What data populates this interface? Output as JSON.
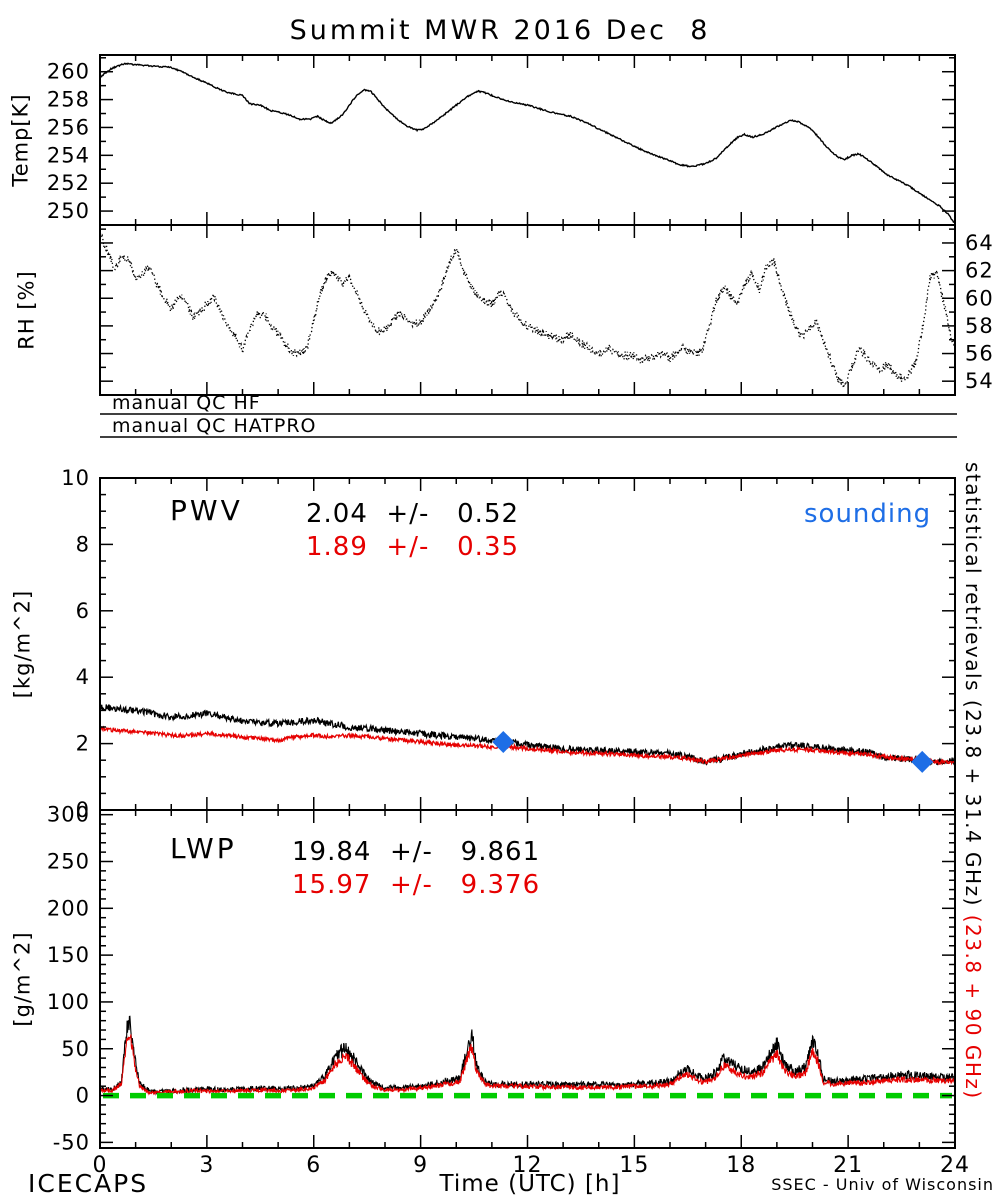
{
  "title": "Summit MWR 2016 Dec  8",
  "footer": {
    "left": "ICECAPS",
    "right": "SSEC - Univ of Wisconsin"
  },
  "qc": {
    "rows": [
      {
        "label": "manual QC HF"
      },
      {
        "label": "manual QC HATPRO"
      }
    ]
  },
  "right_caption": {
    "black": "statistical retrievals (23.8 + 31.4 GHz) ",
    "red": "(23.8 + 90 GHz)"
  },
  "colors": {
    "trace_black": "#000000",
    "trace_red": "#e60000",
    "sounding_blue": "#1e6ee6",
    "zero_green": "#00cc00"
  },
  "xaxis": {
    "label": "Time (UTC) [h]",
    "min": 0,
    "max": 24,
    "ticks": [
      0,
      3,
      6,
      9,
      12,
      15,
      18,
      21,
      24
    ],
    "minor_step": 1
  },
  "chart_data": [
    {
      "name": "temp",
      "type": "line",
      "ylabel": "Temp[K]",
      "ylim": [
        249.0,
        261.2
      ],
      "yticks": [
        250,
        252,
        254,
        256,
        258,
        260
      ],
      "yminor": 1,
      "ytick_side": "left",
      "series": [
        {
          "name": "temperature-K",
          "color": "#000000",
          "width": 1.4,
          "noise": 0.05,
          "samples": 1100,
          "x": [
            0,
            0.3,
            0.7,
            1.0,
            1.5,
            2.0,
            2.3,
            2.7,
            3.0,
            3.3,
            3.6,
            4.0,
            4.2,
            4.5,
            4.8,
            5.0,
            5.3,
            5.6,
            5.9,
            6.1,
            6.3,
            6.5,
            6.8,
            7.0,
            7.2,
            7.4,
            7.6,
            7.8,
            8.0,
            8.3,
            8.6,
            8.9,
            9.1,
            9.4,
            9.7,
            10.0,
            10.3,
            10.6,
            10.8,
            11.0,
            11.3,
            11.6,
            12.0,
            12.4,
            12.8,
            13.2,
            13.6,
            14.0,
            14.4,
            14.8,
            15.2,
            15.6,
            16.0,
            16.3,
            16.6,
            17.0,
            17.3,
            17.6,
            17.9,
            18.1,
            18.3,
            18.6,
            18.9,
            19.2,
            19.4,
            19.6,
            19.9,
            20.1,
            20.4,
            20.7,
            20.9,
            21.1,
            21.3,
            21.5,
            21.8,
            22.1,
            22.4,
            22.7,
            23.0,
            23.3,
            23.6,
            23.8,
            24.0
          ],
          "y": [
            259.6,
            260.2,
            260.6,
            260.5,
            260.4,
            260.3,
            260.0,
            259.5,
            259.2,
            258.8,
            258.5,
            258.3,
            257.7,
            257.6,
            257.2,
            257.1,
            256.9,
            256.6,
            256.6,
            256.8,
            256.5,
            256.3,
            256.9,
            257.6,
            258.3,
            258.7,
            258.6,
            258.0,
            257.4,
            256.7,
            256.1,
            255.8,
            255.9,
            256.4,
            257.0,
            257.6,
            258.2,
            258.6,
            258.5,
            258.3,
            258.0,
            257.8,
            257.6,
            257.3,
            257.0,
            256.8,
            256.4,
            255.9,
            255.4,
            254.9,
            254.4,
            254.0,
            253.6,
            253.3,
            253.2,
            253.4,
            253.8,
            254.6,
            255.3,
            255.5,
            255.3,
            255.5,
            255.9,
            256.3,
            256.5,
            256.4,
            256.0,
            255.5,
            254.6,
            253.9,
            253.7,
            254.0,
            254.1,
            253.8,
            253.2,
            252.6,
            252.2,
            251.8,
            251.3,
            250.8,
            250.3,
            249.8,
            249.1
          ]
        }
      ]
    },
    {
      "name": "rh",
      "type": "scatter",
      "ylabel": "RH [%]",
      "ylim": [
        53.0,
        65.3
      ],
      "yticks": [
        54,
        56,
        58,
        60,
        62,
        64
      ],
      "yminor": 1,
      "ytick_side": "right",
      "series": [
        {
          "name": "relative-humidity-pct",
          "color": "#000000",
          "width": 1.3,
          "style": "dots",
          "noise": 0.3,
          "samples": 1600,
          "x": [
            0,
            0.2,
            0.4,
            0.6,
            0.8,
            1.0,
            1.2,
            1.4,
            1.6,
            1.8,
            2.0,
            2.2,
            2.4,
            2.6,
            2.8,
            3.0,
            3.2,
            3.4,
            3.6,
            3.8,
            4.0,
            4.2,
            4.4,
            4.6,
            4.8,
            5.0,
            5.2,
            5.4,
            5.6,
            5.8,
            6.0,
            6.2,
            6.4,
            6.6,
            6.8,
            7.0,
            7.2,
            7.4,
            7.6,
            7.8,
            8.0,
            8.2,
            8.4,
            8.6,
            8.8,
            9.0,
            9.2,
            9.4,
            9.6,
            9.8,
            10.0,
            10.2,
            10.4,
            10.6,
            10.8,
            11.0,
            11.2,
            11.4,
            11.6,
            11.8,
            12.0,
            12.3,
            12.6,
            12.9,
            13.2,
            13.5,
            13.8,
            14.0,
            14.3,
            14.6,
            14.9,
            15.2,
            15.5,
            15.8,
            16.0,
            16.3,
            16.6,
            16.9,
            17.1,
            17.3,
            17.5,
            17.7,
            17.9,
            18.1,
            18.3,
            18.5,
            18.7,
            18.9,
            19.1,
            19.3,
            19.5,
            19.7,
            19.9,
            20.1,
            20.3,
            20.5,
            20.7,
            20.9,
            21.1,
            21.3,
            21.5,
            21.7,
            21.9,
            22.1,
            22.3,
            22.5,
            22.7,
            22.9,
            23.1,
            23.3,
            23.5,
            23.7,
            23.9,
            24.0
          ],
          "y": [
            64.6,
            63.5,
            62.2,
            63.0,
            62.8,
            61.4,
            61.8,
            62.3,
            61.0,
            60.0,
            59.2,
            60.1,
            59.9,
            58.6,
            59.0,
            59.6,
            60.1,
            59.0,
            58.0,
            57.3,
            56.2,
            57.8,
            58.8,
            58.9,
            58.0,
            57.4,
            56.6,
            56.1,
            56.0,
            56.3,
            58.5,
            60.5,
            61.7,
            61.9,
            61.0,
            61.5,
            60.4,
            59.2,
            58.2,
            57.6,
            57.7,
            58.4,
            58.9,
            58.6,
            58.1,
            58.3,
            59.0,
            59.8,
            61.0,
            62.5,
            63.6,
            62.0,
            60.8,
            60.2,
            59.8,
            59.6,
            60.4,
            60.0,
            59.0,
            58.4,
            58.0,
            57.6,
            57.3,
            57.0,
            57.4,
            56.8,
            56.2,
            56.0,
            56.4,
            55.8,
            55.9,
            55.5,
            55.8,
            56.1,
            55.6,
            56.4,
            56.0,
            56.2,
            58.0,
            59.8,
            60.8,
            60.2,
            59.6,
            61.0,
            61.8,
            60.6,
            62.2,
            62.8,
            61.0,
            59.4,
            58.0,
            57.2,
            57.8,
            58.3,
            57.0,
            55.6,
            54.2,
            53.6,
            55.0,
            56.4,
            55.8,
            55.2,
            54.8,
            55.2,
            54.6,
            54.2,
            54.5,
            55.4,
            58.0,
            61.5,
            61.8,
            59.5,
            57.0,
            56.4
          ]
        }
      ]
    },
    {
      "name": "pwv",
      "type": "line",
      "panel_label": "PWV",
      "ylabel": "[kg/m^2]",
      "ylim": [
        0,
        10
      ],
      "yticks": [
        0,
        2,
        4,
        6,
        8,
        10
      ],
      "yminor": 0.5,
      "ytick_side": "left",
      "stats": {
        "black": "2.04  +/-   0.52",
        "red": "1.89  +/-   0.35"
      },
      "sounding_label": "sounding",
      "sounding_color": "#1e6ee6",
      "sounding_points": [
        [
          11.32,
          2.05
        ],
        [
          23.08,
          1.45
        ]
      ],
      "series": [
        {
          "name": "pwv-23.8-31.4GHz",
          "color": "#000000",
          "width": 1.3,
          "noise": 0.1,
          "samples": 1500,
          "x": [
            0,
            0.5,
            1,
            1.5,
            2,
            2.5,
            3,
            3.5,
            4,
            4.5,
            5,
            5.5,
            6,
            6.5,
            7,
            7.5,
            8,
            8.5,
            9,
            9.5,
            10,
            10.5,
            11,
            11.5,
            12,
            12.5,
            13,
            13.5,
            14,
            14.5,
            15,
            15.5,
            16,
            16.5,
            17,
            17.5,
            18,
            18.5,
            19,
            19.5,
            20,
            20.5,
            21,
            21.5,
            22,
            22.5,
            23,
            23.5,
            24
          ],
          "y": [
            3.1,
            3.05,
            3.0,
            2.9,
            2.8,
            2.85,
            2.9,
            2.8,
            2.7,
            2.62,
            2.6,
            2.65,
            2.7,
            2.6,
            2.5,
            2.45,
            2.4,
            2.35,
            2.3,
            2.25,
            2.2,
            2.15,
            2.1,
            2.05,
            1.95,
            1.9,
            1.85,
            1.82,
            1.8,
            1.78,
            1.75,
            1.72,
            1.7,
            1.6,
            1.45,
            1.55,
            1.7,
            1.8,
            1.9,
            1.95,
            1.9,
            1.85,
            1.8,
            1.75,
            1.6,
            1.55,
            1.5,
            1.45,
            1.5
          ]
        },
        {
          "name": "pwv-23.8-90GHz",
          "color": "#e60000",
          "width": 1.3,
          "noise": 0.06,
          "samples": 1500,
          "x": [
            0,
            0.5,
            1,
            1.5,
            2,
            2.5,
            3,
            3.5,
            4,
            4.5,
            5,
            5.5,
            6,
            6.5,
            7,
            7.5,
            8,
            8.5,
            9,
            9.5,
            10,
            10.5,
            11,
            11.5,
            12,
            12.5,
            13,
            13.5,
            14,
            14.5,
            15,
            15.5,
            16,
            16.5,
            17,
            17.5,
            18,
            18.5,
            19,
            19.5,
            20,
            20.5,
            21,
            21.5,
            22,
            22.5,
            23,
            23.5,
            24
          ],
          "y": [
            2.45,
            2.4,
            2.35,
            2.3,
            2.25,
            2.25,
            2.3,
            2.25,
            2.2,
            2.15,
            2.1,
            2.2,
            2.25,
            2.2,
            2.25,
            2.2,
            2.15,
            2.1,
            2.05,
            2.0,
            1.95,
            1.95,
            1.9,
            1.9,
            1.85,
            1.8,
            1.75,
            1.72,
            1.7,
            1.68,
            1.65,
            1.62,
            1.6,
            1.55,
            1.45,
            1.55,
            1.65,
            1.72,
            1.8,
            1.82,
            1.8,
            1.75,
            1.72,
            1.68,
            1.6,
            1.55,
            1.5,
            1.45,
            1.45
          ]
        }
      ]
    },
    {
      "name": "lwp",
      "type": "line",
      "panel_label": "LWP",
      "ylabel": "[g/m^2]",
      "ylim": [
        -56,
        305
      ],
      "yticks": [
        -50,
        0,
        50,
        100,
        150,
        200,
        250,
        300
      ],
      "yminor": 10,
      "ytick_side": "left",
      "stats": {
        "black": "19.84  +/-   9.861",
        "red": "15.97  +/-   9.376"
      },
      "zero_line": {
        "y": 0,
        "color": "#00cc00",
        "style": "dashed"
      },
      "series": [
        {
          "name": "lwp-23.8-31.4GHz",
          "color": "#000000",
          "width": 1.1,
          "noise": 2,
          "noise_scale": 0.12,
          "samples": 1800,
          "x": [
            0,
            0.3,
            0.6,
            0.75,
            0.85,
            0.95,
            1.1,
            1.3,
            1.6,
            2,
            2.5,
            3,
            3.5,
            4,
            4.5,
            5,
            5.5,
            6,
            6.3,
            6.5,
            6.7,
            6.9,
            7.1,
            7.3,
            7.5,
            7.7,
            8,
            8.5,
            9,
            9.5,
            9.8,
            10.1,
            10.35,
            10.45,
            10.55,
            10.8,
            11,
            11.5,
            12,
            12.5,
            13,
            13.5,
            14,
            14.5,
            15,
            15.5,
            16,
            16.3,
            16.5,
            16.8,
            17,
            17.3,
            17.5,
            17.7,
            18,
            18.3,
            18.6,
            18.8,
            19,
            19.2,
            19.5,
            19.8,
            20,
            20.15,
            20.3,
            20.6,
            21,
            21.5,
            22,
            22.5,
            23,
            23.5,
            24
          ],
          "y": [
            8,
            6,
            15,
            70,
            75,
            45,
            15,
            6,
            4,
            5,
            6,
            7,
            6,
            7,
            8,
            7,
            8,
            10,
            20,
            35,
            45,
            50,
            40,
            30,
            18,
            12,
            8,
            8,
            10,
            14,
            16,
            18,
            55,
            65,
            35,
            15,
            12,
            12,
            12,
            12,
            11,
            12,
            12,
            11,
            12,
            13,
            15,
            25,
            28,
            20,
            18,
            25,
            40,
            35,
            28,
            25,
            30,
            45,
            55,
            35,
            25,
            30,
            60,
            45,
            18,
            15,
            16,
            18,
            20,
            22,
            22,
            20,
            20
          ]
        },
        {
          "name": "lwp-23.8-90GHz",
          "color": "#e60000",
          "width": 1.1,
          "noise": 1.5,
          "noise_scale": 0.1,
          "samples": 1800,
          "x": [
            0,
            0.3,
            0.6,
            0.75,
            0.85,
            0.95,
            1.1,
            1.3,
            1.6,
            2,
            2.5,
            3,
            3.5,
            4,
            4.5,
            5,
            5.5,
            6,
            6.3,
            6.5,
            6.7,
            6.9,
            7.1,
            7.3,
            7.5,
            7.7,
            8,
            8.5,
            9,
            9.5,
            9.8,
            10.1,
            10.35,
            10.45,
            10.55,
            10.8,
            11,
            11.5,
            12,
            12.5,
            13,
            13.5,
            14,
            14.5,
            15,
            15.5,
            16,
            16.3,
            16.5,
            16.8,
            17,
            17.3,
            17.5,
            17.7,
            18,
            18.3,
            18.6,
            18.8,
            19,
            19.2,
            19.5,
            19.8,
            20,
            20.15,
            20.3,
            20.6,
            21,
            21.5,
            22,
            22.5,
            23,
            23.5,
            24
          ],
          "y": [
            6,
            5,
            12,
            60,
            65,
            38,
            12,
            4,
            3,
            4,
            5,
            5,
            5,
            5,
            6,
            5,
            6,
            8,
            16,
            28,
            38,
            42,
            33,
            24,
            14,
            9,
            6,
            6,
            8,
            11,
            13,
            14,
            45,
            52,
            28,
            12,
            10,
            10,
            10,
            9,
            9,
            9,
            9,
            9,
            10,
            10,
            12,
            20,
            22,
            16,
            14,
            20,
            32,
            28,
            22,
            20,
            24,
            36,
            45,
            28,
            20,
            24,
            48,
            36,
            14,
            12,
            13,
            14,
            16,
            17,
            17,
            16,
            16
          ]
        }
      ]
    }
  ]
}
